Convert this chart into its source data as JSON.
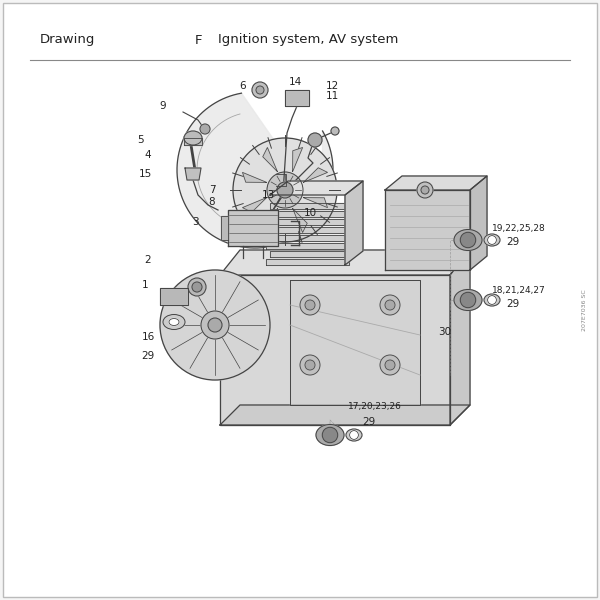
{
  "title_left": "Drawing",
  "title_mid": "F",
  "title_right": "Ignition system, AV system",
  "bg_color": "#f5f5f5",
  "content_bg": "#ffffff",
  "border_color": "#bbbbbb",
  "line_color": "#444444",
  "text_color": "#222222",
  "font_size_title": 9.5,
  "font_size_label": 7.5,
  "side_text": "207E7036 SC",
  "figsize": [
    6.0,
    6.0
  ],
  "dpi": 100
}
